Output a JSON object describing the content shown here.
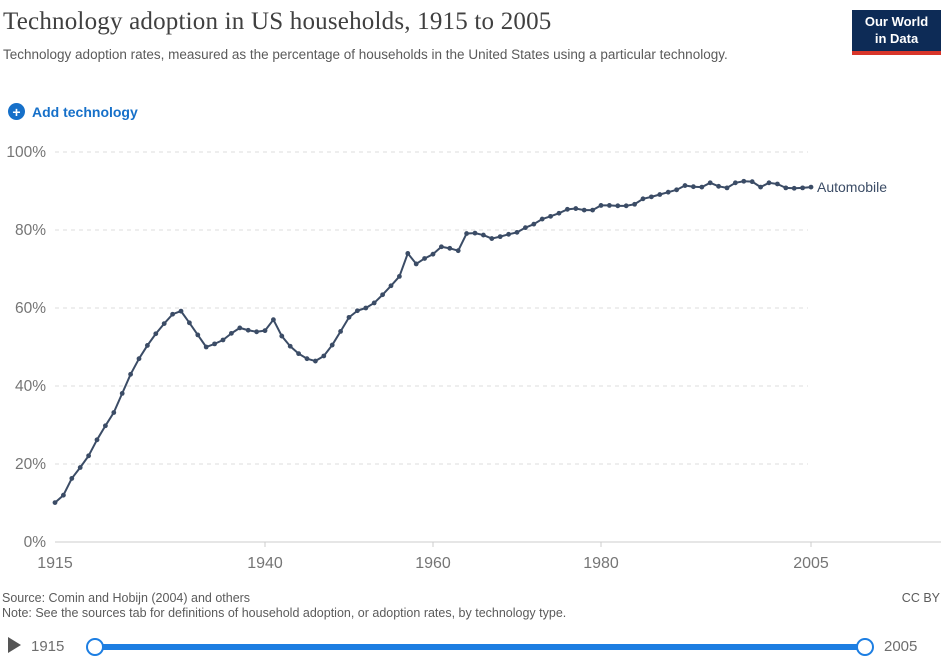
{
  "header": {
    "title": "Technology adoption in US households, 1915 to 2005",
    "subtitle": "Technology adoption rates, measured as the percentage of households in the United States using a particular technology.",
    "logo_line1": "Our World",
    "logo_line2": "in Data"
  },
  "controls": {
    "add_button_label": "Add technology",
    "plus_icon": "+"
  },
  "chart_data": {
    "type": "line",
    "title": "Technology adoption in US households, 1915 to 2005",
    "xlabel": "",
    "ylabel": "",
    "xlim": [
      1915,
      2005
    ],
    "ylim": [
      0,
      100
    ],
    "x_step": 1,
    "grid": "horizontal-dashed",
    "legend_position": "right-end-of-line",
    "xticks": [
      {
        "value": 1915,
        "label": "1915"
      },
      {
        "value": 1940,
        "label": "1940"
      },
      {
        "value": 1960,
        "label": "1960"
      },
      {
        "value": 1980,
        "label": "1980"
      },
      {
        "value": 2005,
        "label": "2005"
      }
    ],
    "yticks": [
      {
        "value": 0,
        "label": "0%"
      },
      {
        "value": 20,
        "label": "20%"
      },
      {
        "value": 40,
        "label": "40%"
      },
      {
        "value": 60,
        "label": "60%"
      },
      {
        "value": 80,
        "label": "80%"
      },
      {
        "value": 100,
        "label": "100%"
      }
    ],
    "series": [
      {
        "name": "Automobile",
        "color": "#3b4c66",
        "x_start": 1915,
        "values": [
          10.1,
          12.0,
          16.3,
          19.1,
          22.1,
          26.2,
          29.8,
          33.2,
          38.1,
          43.0,
          47.0,
          50.4,
          53.4,
          56.0,
          58.4,
          59.2,
          56.2,
          53.1,
          50.0,
          50.8,
          51.8,
          53.5,
          54.9,
          54.3,
          53.9,
          54.2,
          57.0,
          52.8,
          50.2,
          48.3,
          47.0,
          46.4,
          47.7,
          50.5,
          54.0,
          57.6,
          59.3,
          60.0,
          61.3,
          63.4,
          65.7,
          68.1,
          74.0,
          71.3,
          72.7,
          73.8,
          75.7,
          75.3,
          74.7,
          79.1,
          79.2,
          78.7,
          77.8,
          78.3,
          78.9,
          79.4,
          80.6,
          81.5,
          82.8,
          83.5,
          84.3,
          85.3,
          85.5,
          85.1,
          85.1,
          86.3,
          86.3,
          86.2,
          86.2,
          86.6,
          88.0,
          88.5,
          89.1,
          89.7,
          90.3,
          91.4,
          91.1,
          91.0,
          92.1,
          91.2,
          90.8,
          92.1,
          92.5,
          92.4,
          91.0,
          92.1,
          91.8,
          90.8,
          90.7,
          90.8,
          91.0
        ]
      }
    ]
  },
  "footer": {
    "source": "Source: Comin and Hobijn (2004) and others",
    "note": "Note: See the sources tab for definitions of household adoption, or adoption rates, by technology type.",
    "license": "CC BY"
  },
  "timeline": {
    "start_year": "1915",
    "end_year": "2005"
  },
  "colors": {
    "series_line": "#3b4c66",
    "gridline": "#dddddd",
    "axis_line": "#cccccc",
    "tick_label": "#757575",
    "accent_blue": "#1670c9",
    "slider_blue": "#1d7ee2",
    "logo_navy": "#0d2b56",
    "logo_red": "#d8352a"
  }
}
